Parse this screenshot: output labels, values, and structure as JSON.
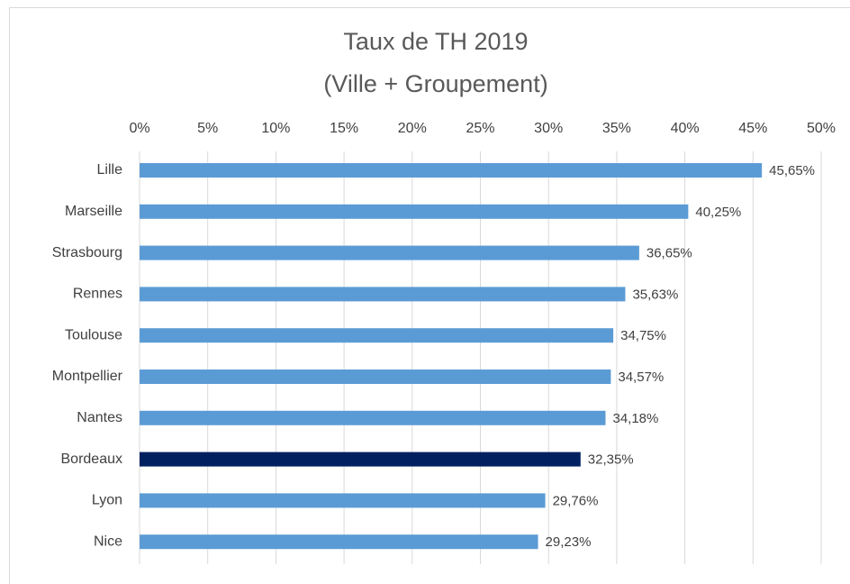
{
  "chart_data": {
    "type": "bar",
    "orientation": "horizontal",
    "title": "Taux de TH 2019",
    "subtitle": "(Ville + Groupement)",
    "categories": [
      "Lille",
      "Marseille",
      "Strasbourg",
      "Rennes",
      "Toulouse",
      "Montpellier",
      "Nantes",
      "Bordeaux",
      "Lyon",
      "Nice"
    ],
    "values": [
      45.65,
      40.25,
      36.65,
      35.63,
      34.75,
      34.57,
      34.18,
      32.35,
      29.76,
      29.23
    ],
    "value_labels": [
      "45,65%",
      "40,25%",
      "36,65%",
      "35,63%",
      "34,75%",
      "34,57%",
      "34,18%",
      "32,35%",
      "29,76%",
      "29,23%"
    ],
    "colors": [
      "#5b9bd5",
      "#5b9bd5",
      "#5b9bd5",
      "#5b9bd5",
      "#5b9bd5",
      "#5b9bd5",
      "#5b9bd5",
      "#002060",
      "#5b9bd5",
      "#5b9bd5"
    ],
    "xlim": [
      0,
      50
    ],
    "xticks": [
      {
        "value": 0,
        "label": "0%"
      },
      {
        "value": 5,
        "label": "5%"
      },
      {
        "value": 10,
        "label": "10%"
      },
      {
        "value": 15,
        "label": "15%"
      },
      {
        "value": 20,
        "label": "20%"
      },
      {
        "value": 25,
        "label": "25%"
      },
      {
        "value": 30,
        "label": "30%"
      },
      {
        "value": 35,
        "label": "35%"
      },
      {
        "value": 40,
        "label": "40%"
      },
      {
        "value": 45,
        "label": "45%"
      },
      {
        "value": 50,
        "label": "50%"
      }
    ],
    "grid": true
  }
}
